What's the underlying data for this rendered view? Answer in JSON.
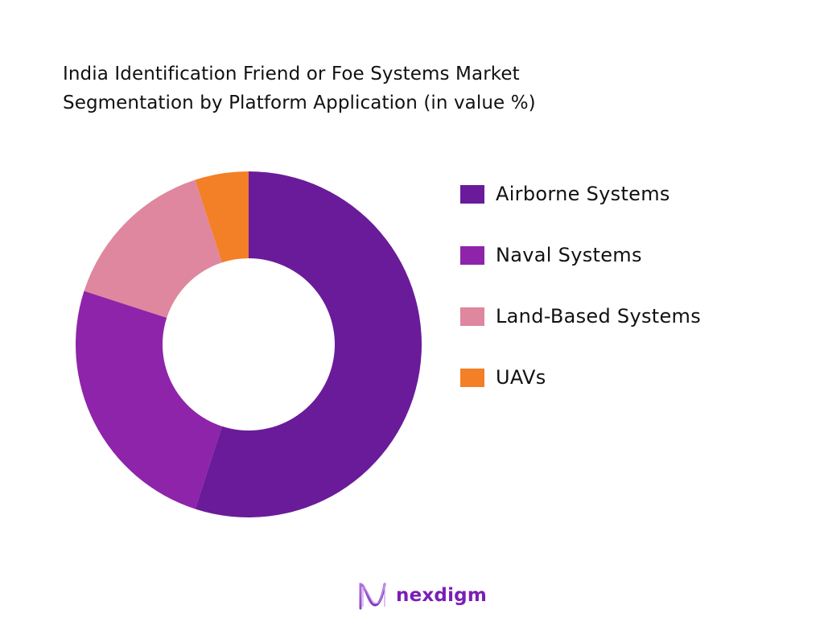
{
  "title": {
    "line1": "India Identification Friend or Foe Systems Market",
    "line2": "Segmentation by Platform Application (in value %)"
  },
  "chart_data": {
    "type": "pie",
    "variant": "donut",
    "title": "India Identification Friend or Foe Systems Market Segmentation by Platform Application (in value %)",
    "categories": [
      "Airborne Systems",
      "Naval Systems",
      "Land-Based Systems",
      "UAVs"
    ],
    "values": [
      55,
      25,
      15,
      5
    ],
    "colors": [
      "#6a1b9a",
      "#8e24aa",
      "#de879e",
      "#f37f26"
    ],
    "start_angle_deg": 0,
    "direction": "clockwise",
    "legend_position": "right",
    "data_labels": false
  },
  "legend": {
    "items": [
      {
        "label": "Airborne Systems",
        "color": "#6a1b9a"
      },
      {
        "label": "Naval Systems",
        "color": "#8e24aa"
      },
      {
        "label": "Land-Based Systems",
        "color": "#de879e"
      },
      {
        "label": "UAVs",
        "color": "#f37f26"
      }
    ]
  },
  "brand": {
    "logo_text": "nexdigm",
    "color": "#7a1fb5"
  }
}
